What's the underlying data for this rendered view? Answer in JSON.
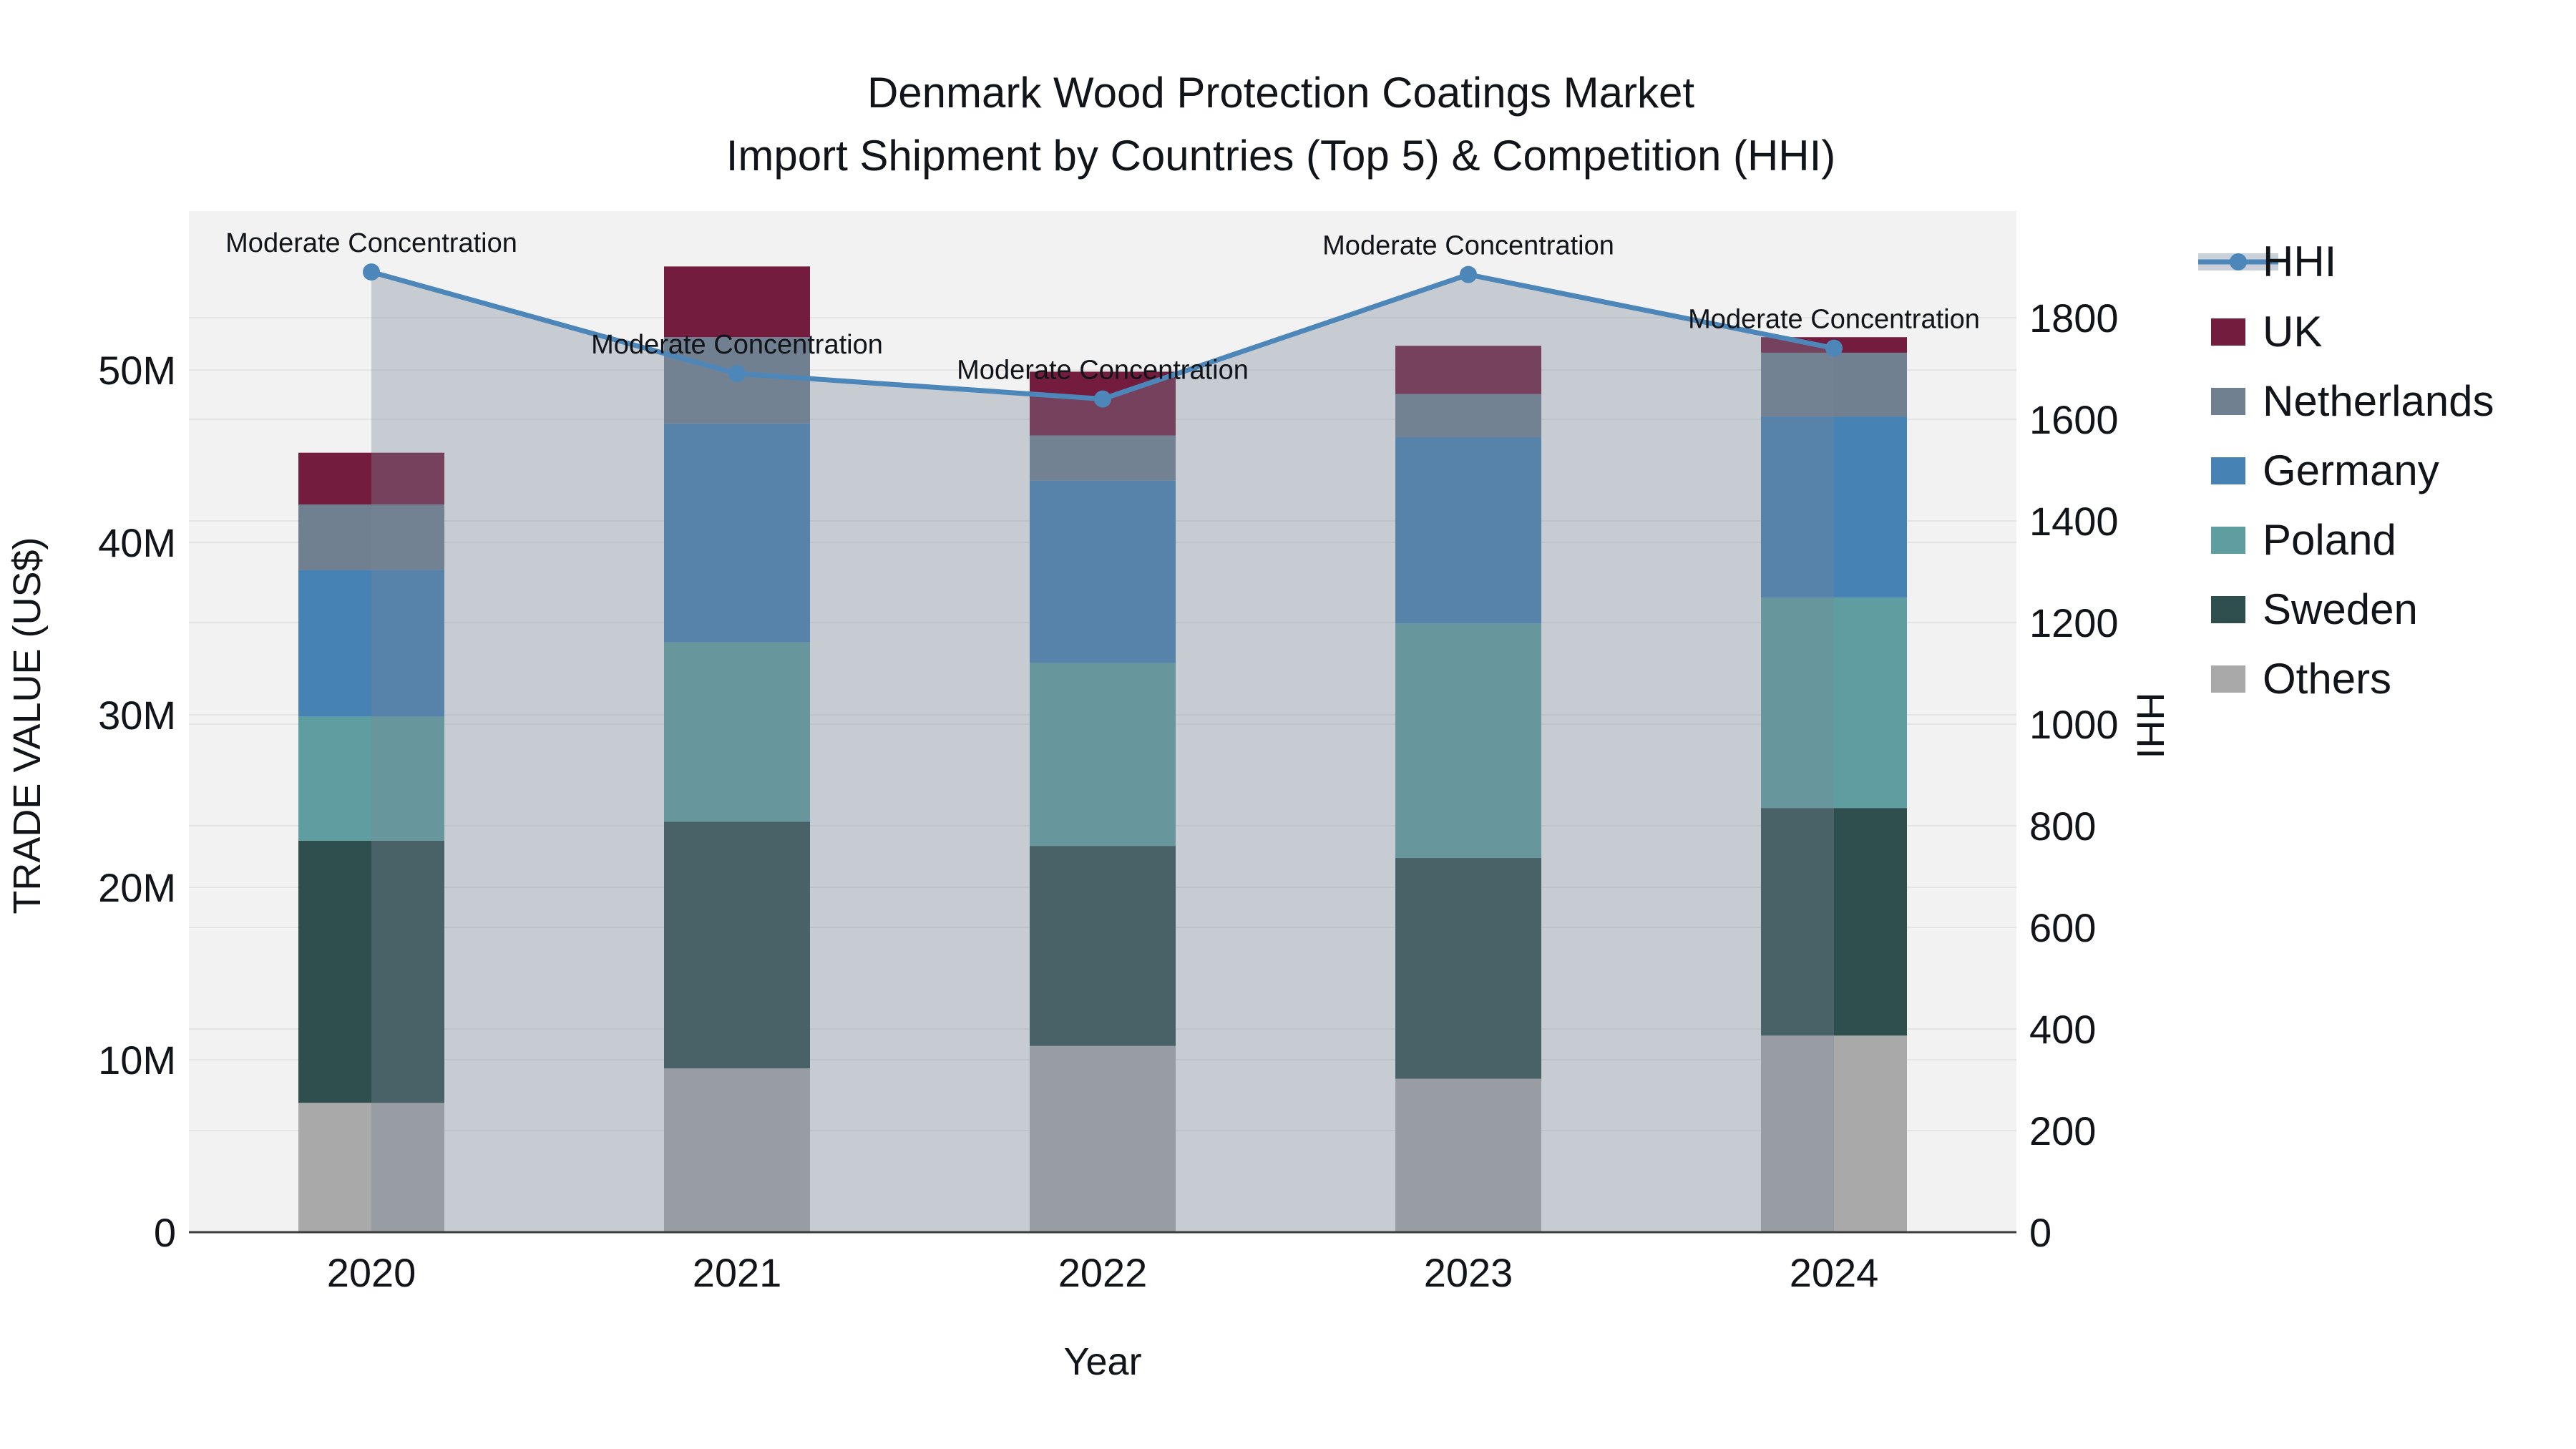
{
  "title_line1": "Denmark Wood Protection Coatings Market",
  "title_line2": "Import Shipment by Countries (Top 5) & Competition (HHI)",
  "chart_data": {
    "type": "combo: stacked-bar + line (dual axis)",
    "title": "Denmark Wood Protection Coatings Market — Import Shipment by Countries (Top 5) & Competition (HHI)",
    "x_label": "Year",
    "categories": [
      "2020",
      "2021",
      "2022",
      "2023",
      "2024"
    ],
    "y_left": {
      "label": "TRADE VALUE (US$)",
      "tick_labels": [
        "0",
        "10M",
        "20M",
        "30M",
        "40M",
        "50M"
      ],
      "tick_values": [
        0,
        10,
        20,
        30,
        40,
        50
      ],
      "units": "million US$",
      "axis_max": 59.2
    },
    "y_right": {
      "label": "HHI",
      "tick_labels": [
        "0",
        "200",
        "400",
        "600",
        "800",
        "1000",
        "1200",
        "1400",
        "1600",
        "1800"
      ],
      "tick_values": [
        0,
        200,
        400,
        600,
        800,
        1000,
        1200,
        1400,
        1600,
        1800
      ],
      "axis_max": 2010
    },
    "series": [
      {
        "name": "Others",
        "color": "#A9A9A9",
        "values": [
          7.5,
          9.5,
          10.8,
          8.9,
          11.4
        ]
      },
      {
        "name": "Sweden",
        "color": "#2F4F4F",
        "values": [
          15.2,
          14.3,
          11.6,
          12.8,
          13.2
        ]
      },
      {
        "name": "Poland",
        "color": "#5F9EA0",
        "values": [
          7.2,
          10.4,
          10.6,
          13.6,
          12.2
        ]
      },
      {
        "name": "Germany",
        "color": "#4682B4",
        "values": [
          8.5,
          12.7,
          10.6,
          10.8,
          10.5
        ]
      },
      {
        "name": "Netherlands",
        "color": "#718090",
        "values": [
          3.8,
          5.0,
          2.6,
          2.5,
          3.7
        ]
      },
      {
        "name": "UK",
        "color": "#731C3E",
        "values": [
          3.0,
          4.1,
          3.7,
          2.8,
          0.9
        ]
      }
    ],
    "stack_totals": [
      45.2,
      56.0,
      49.9,
      51.4,
      51.9
    ],
    "line": {
      "name": "HHI",
      "color": "#4D87B9",
      "area_fill": "rgba(119,136,153,0.35)",
      "legend_band_color": "#C9D0DA",
      "values": [
        1890,
        1690,
        1640,
        1885,
        1740
      ]
    },
    "annotations": [
      {
        "text": "Moderate Concentration",
        "category": "2020"
      },
      {
        "text": "Moderate Concentration",
        "category": "2021"
      },
      {
        "text": "Moderate Concentration",
        "category": "2022"
      },
      {
        "text": "Moderate Concentration",
        "category": "2023"
      },
      {
        "text": "Moderate Concentration",
        "category": "2024"
      }
    ],
    "legend_order": [
      "HHI",
      "UK",
      "Netherlands",
      "Germany",
      "Poland",
      "Sweden",
      "Others"
    ],
    "layout_hints": {
      "legend_position": "right",
      "grid": "on",
      "plot_background": "#F2F2F2",
      "gridline_color": "#E4E4E4",
      "axisline_color": "#3C3C3C"
    }
  }
}
